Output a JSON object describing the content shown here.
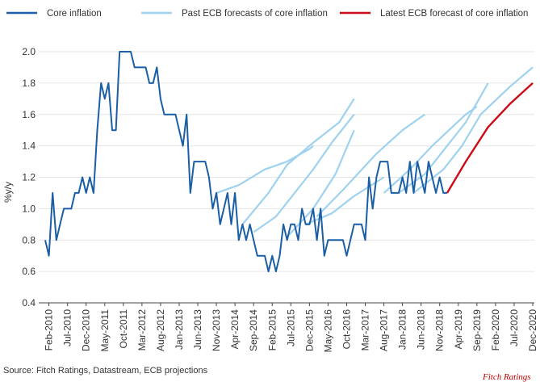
{
  "colors": {
    "core": "#1a5ea6",
    "past": "#9fd2ee",
    "latest": "#cc0a18",
    "grid": "#e6e6e6",
    "axis": "#444444"
  },
  "footer": {
    "source": "Source: Fitch Ratings, Datastream, ECB projections",
    "brand": "Fitch Ratings"
  },
  "chart_data": {
    "type": "line",
    "ylabel": "%y/y",
    "ylim": [
      0.4,
      2.0
    ],
    "yticks": [
      "0.4",
      "0.6",
      "0.8",
      "1.0",
      "1.2",
      "1.4",
      "1.6",
      "1.8",
      "2.0"
    ],
    "xrange": [
      "2010-01",
      "2020-12"
    ],
    "xtick_dates": [
      "2010-02",
      "2010-07",
      "2010-12",
      "2011-05",
      "2011-10",
      "2012-03",
      "2012-08",
      "2013-01",
      "2013-06",
      "2013-11",
      "2014-04",
      "2014-09",
      "2015-02",
      "2015-07",
      "2015-12",
      "2016-05",
      "2016-10",
      "2017-03",
      "2017-08",
      "2018-01",
      "2018-06",
      "2018-11",
      "2019-04",
      "2019-09",
      "2020-02",
      "2020-07",
      "2020-12"
    ],
    "xtick_labels": [
      "Feb-2010",
      "Jul-2010",
      "Dec-2010",
      "May-2011",
      "Oct-2011",
      "Mar-2012",
      "Aug-2012",
      "Jan-2013",
      "Jun-2013",
      "Nov-2013",
      "Apr-2014",
      "Sep-2014",
      "Feb-2015",
      "Jul-2015",
      "Dec-2015",
      "May-2016",
      "Oct-2016",
      "Mar-2017",
      "Aug-2017",
      "Jan-2018",
      "Jun-2018",
      "Nov-2018",
      "Apr-2019",
      "Sep-2019",
      "Feb-2020",
      "Jul-2020",
      "Dec-2020"
    ],
    "legend": [
      {
        "name": "Core inflation",
        "color": "#1a5ea6"
      },
      {
        "name": "Past ECB forecasts of core inflation",
        "color": "#9fd2ee"
      },
      {
        "name": "Latest ECB forecast of core inflation",
        "color": "#cc0a18"
      }
    ],
    "core_inflation": {
      "name": "Core inflation",
      "points": [
        [
          "2010-01",
          0.8
        ],
        [
          "2010-02",
          0.7
        ],
        [
          "2010-03",
          1.1
        ],
        [
          "2010-04",
          0.8
        ],
        [
          "2010-05",
          0.9
        ],
        [
          "2010-06",
          1.0
        ],
        [
          "2010-07",
          1.0
        ],
        [
          "2010-08",
          1.0
        ],
        [
          "2010-09",
          1.1
        ],
        [
          "2010-10",
          1.1
        ],
        [
          "2010-11",
          1.2
        ],
        [
          "2010-12",
          1.1
        ],
        [
          "2011-01",
          1.2
        ],
        [
          "2011-02",
          1.1
        ],
        [
          "2011-03",
          1.5
        ],
        [
          "2011-04",
          1.8
        ],
        [
          "2011-05",
          1.7
        ],
        [
          "2011-06",
          1.8
        ],
        [
          "2011-07",
          1.5
        ],
        [
          "2011-08",
          1.5
        ],
        [
          "2011-09",
          2.0
        ],
        [
          "2011-10",
          2.0
        ],
        [
          "2011-11",
          2.0
        ],
        [
          "2011-12",
          2.0
        ],
        [
          "2012-01",
          1.9
        ],
        [
          "2012-02",
          1.9
        ],
        [
          "2012-03",
          1.9
        ],
        [
          "2012-04",
          1.9
        ],
        [
          "2012-05",
          1.8
        ],
        [
          "2012-06",
          1.8
        ],
        [
          "2012-07",
          1.9
        ],
        [
          "2012-08",
          1.7
        ],
        [
          "2012-09",
          1.6
        ],
        [
          "2012-10",
          1.6
        ],
        [
          "2012-11",
          1.6
        ],
        [
          "2012-12",
          1.6
        ],
        [
          "2013-01",
          1.5
        ],
        [
          "2013-02",
          1.4
        ],
        [
          "2013-03",
          1.6
        ],
        [
          "2013-04",
          1.1
        ],
        [
          "2013-05",
          1.3
        ],
        [
          "2013-06",
          1.3
        ],
        [
          "2013-07",
          1.3
        ],
        [
          "2013-08",
          1.3
        ],
        [
          "2013-09",
          1.2
        ],
        [
          "2013-10",
          1.0
        ],
        [
          "2013-11",
          1.1
        ],
        [
          "2013-12",
          0.9
        ],
        [
          "2014-01",
          1.0
        ],
        [
          "2014-02",
          1.1
        ],
        [
          "2014-03",
          0.9
        ],
        [
          "2014-04",
          1.1
        ],
        [
          "2014-05",
          0.8
        ],
        [
          "2014-06",
          0.9
        ],
        [
          "2014-07",
          0.8
        ],
        [
          "2014-08",
          0.9
        ],
        [
          "2014-09",
          0.8
        ],
        [
          "2014-10",
          0.7
        ],
        [
          "2014-11",
          0.7
        ],
        [
          "2014-12",
          0.7
        ],
        [
          "2015-01",
          0.6
        ],
        [
          "2015-02",
          0.7
        ],
        [
          "2015-03",
          0.6
        ],
        [
          "2015-04",
          0.7
        ],
        [
          "2015-05",
          0.9
        ],
        [
          "2015-06",
          0.8
        ],
        [
          "2015-07",
          0.9
        ],
        [
          "2015-08",
          0.9
        ],
        [
          "2015-09",
          0.8
        ],
        [
          "2015-10",
          1.0
        ],
        [
          "2015-11",
          0.9
        ],
        [
          "2015-12",
          0.9
        ],
        [
          "2016-01",
          1.0
        ],
        [
          "2016-02",
          0.8
        ],
        [
          "2016-03",
          1.0
        ],
        [
          "2016-04",
          0.7
        ],
        [
          "2016-05",
          0.8
        ],
        [
          "2016-06",
          0.8
        ],
        [
          "2016-07",
          0.8
        ],
        [
          "2016-08",
          0.8
        ],
        [
          "2016-09",
          0.8
        ],
        [
          "2016-10",
          0.7
        ],
        [
          "2016-11",
          0.8
        ],
        [
          "2016-12",
          0.9
        ],
        [
          "2017-01",
          0.9
        ],
        [
          "2017-02",
          0.9
        ],
        [
          "2017-03",
          0.8
        ],
        [
          "2017-04",
          1.2
        ],
        [
          "2017-05",
          1.0
        ],
        [
          "2017-06",
          1.2
        ],
        [
          "2017-07",
          1.3
        ],
        [
          "2017-08",
          1.3
        ],
        [
          "2017-09",
          1.3
        ],
        [
          "2017-10",
          1.1
        ],
        [
          "2017-11",
          1.1
        ],
        [
          "2017-12",
          1.1
        ],
        [
          "2018-01",
          1.2
        ],
        [
          "2018-02",
          1.1
        ],
        [
          "2018-03",
          1.3
        ],
        [
          "2018-04",
          1.1
        ],
        [
          "2018-05",
          1.3
        ],
        [
          "2018-06",
          1.2
        ],
        [
          "2018-07",
          1.1
        ],
        [
          "2018-08",
          1.3
        ],
        [
          "2018-09",
          1.2
        ],
        [
          "2018-10",
          1.1
        ],
        [
          "2018-11",
          1.2
        ],
        [
          "2018-12",
          1.1
        ],
        [
          "2019-01",
          1.1
        ]
      ]
    },
    "past_forecasts": [
      {
        "points": [
          [
            "2013-11",
            1.1
          ],
          [
            "2014-05",
            1.15
          ],
          [
            "2014-12",
            1.25
          ],
          [
            "2015-06",
            1.3
          ],
          [
            "2015-12",
            1.38
          ],
          [
            "2016-01",
            1.4
          ]
        ]
      },
      {
        "points": [
          [
            "2014-06",
            0.9
          ],
          [
            "2015-01",
            1.1
          ],
          [
            "2015-06",
            1.28
          ],
          [
            "2016-01",
            1.42
          ],
          [
            "2016-08",
            1.55
          ],
          [
            "2016-12",
            1.7
          ]
        ]
      },
      {
        "points": [
          [
            "2014-09",
            0.85
          ],
          [
            "2015-03",
            0.95
          ],
          [
            "2016-01",
            1.25
          ],
          [
            "2016-06",
            1.42
          ],
          [
            "2016-12",
            1.6
          ]
        ]
      },
      {
        "points": [
          [
            "2015-06",
            0.82
          ],
          [
            "2016-01",
            1.0
          ],
          [
            "2016-07",
            1.22
          ],
          [
            "2016-12",
            1.5
          ]
        ]
      },
      {
        "points": [
          [
            "2015-11",
            0.9
          ],
          [
            "2016-06",
            0.97
          ],
          [
            "2016-12",
            1.08
          ],
          [
            "2017-08",
            1.2
          ]
        ]
      },
      {
        "points": [
          [
            "2016-02",
            0.95
          ],
          [
            "2016-09",
            1.12
          ],
          [
            "2017-06",
            1.35
          ],
          [
            "2018-01",
            1.5
          ],
          [
            "2018-07",
            1.6
          ]
        ]
      },
      {
        "points": [
          [
            "2017-08",
            1.1
          ],
          [
            "2018-03",
            1.25
          ],
          [
            "2018-09",
            1.4
          ],
          [
            "2019-06",
            1.6
          ],
          [
            "2019-09",
            1.65
          ]
        ]
      },
      {
        "points": [
          [
            "2017-12",
            1.1
          ],
          [
            "2018-07",
            1.22
          ],
          [
            "2019-01",
            1.4
          ],
          [
            "2019-06",
            1.55
          ],
          [
            "2019-12",
            1.8
          ]
        ]
      },
      {
        "points": [
          [
            "2018-04",
            1.1
          ],
          [
            "2018-12",
            1.25
          ],
          [
            "2019-05",
            1.4
          ],
          [
            "2019-10",
            1.6
          ],
          [
            "2020-06",
            1.78
          ],
          [
            "2020-12",
            1.9
          ]
        ]
      }
    ],
    "latest_forecast": {
      "name": "Latest ECB forecast of core inflation",
      "points": [
        [
          "2019-01",
          1.1
        ],
        [
          "2019-06",
          1.3
        ],
        [
          "2019-12",
          1.52
        ],
        [
          "2020-06",
          1.67
        ],
        [
          "2020-12",
          1.8
        ]
      ]
    }
  }
}
